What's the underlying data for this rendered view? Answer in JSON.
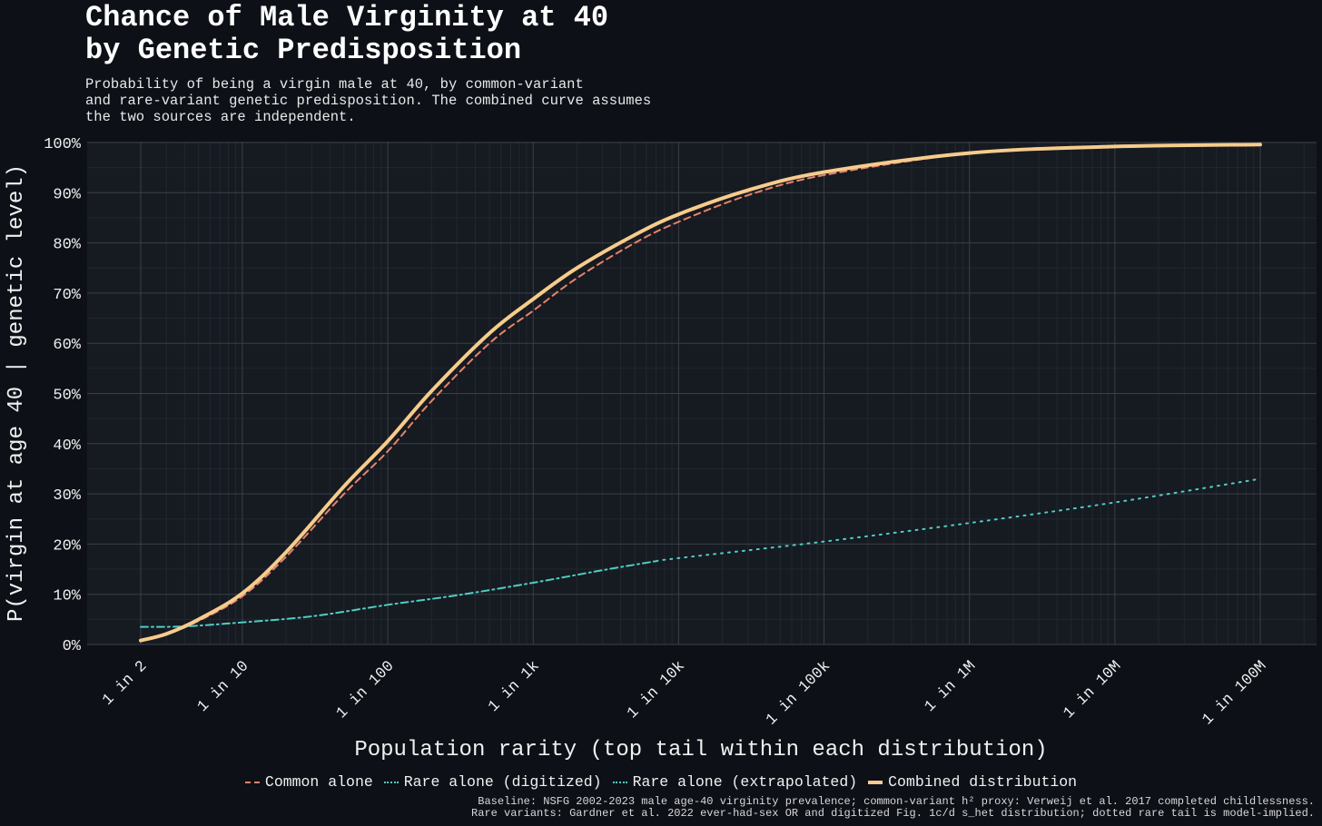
{
  "chart_data": {
    "type": "line",
    "title": "Chance of Male Virginity at 40\nby Genetic Predisposition",
    "subtitle": "Probability of being a virgin male at 40, by common-variant\nand rare-variant genetic predisposition. The combined curve assumes\nthe two sources are independent.",
    "xlabel": "Population rarity (top tail within each distribution)",
    "ylabel": "P(virgin at age 40 | genetic level)",
    "x_scale": "log",
    "xlim": [
      2,
      100000000
    ],
    "ylim": [
      0,
      100
    ],
    "x_ticks": [
      {
        "value": 2,
        "label": "1 in 2"
      },
      {
        "value": 10,
        "label": "1 in 10"
      },
      {
        "value": 100,
        "label": "1 in 100"
      },
      {
        "value": 1000,
        "label": "1 in 1k"
      },
      {
        "value": 10000,
        "label": "1 in 10k"
      },
      {
        "value": 100000,
        "label": "1 in 100k"
      },
      {
        "value": 1000000,
        "label": "1 in 1M"
      },
      {
        "value": 10000000,
        "label": "1 in 10M"
      },
      {
        "value": 100000000,
        "label": "1 in 100M"
      }
    ],
    "y_ticks": [
      {
        "value": 0,
        "label": "0%"
      },
      {
        "value": 10,
        "label": "10%"
      },
      {
        "value": 20,
        "label": "20%"
      },
      {
        "value": 30,
        "label": "30%"
      },
      {
        "value": 40,
        "label": "40%"
      },
      {
        "value": 50,
        "label": "50%"
      },
      {
        "value": 60,
        "label": "60%"
      },
      {
        "value": 70,
        "label": "70%"
      },
      {
        "value": 80,
        "label": "80%"
      },
      {
        "value": 90,
        "label": "90%"
      },
      {
        "value": 100,
        "label": "100%"
      }
    ],
    "grid": true,
    "legend_position": "bottom-center",
    "series": [
      {
        "name": "Common alone",
        "color": "#e8826a",
        "style": "dashed",
        "x": [
          2,
          3,
          5,
          10,
          20,
          50,
          100,
          200,
          500,
          1000,
          2000,
          5000,
          10000,
          30000,
          100000,
          1000000,
          10000000,
          100000000
        ],
        "y": [
          0.8,
          2.0,
          4.7,
          9.6,
          17.5,
          30.0,
          38.5,
          48.5,
          60.0,
          66.5,
          73.0,
          80.0,
          84.2,
          89.5,
          93.5,
          97.8,
          99.1,
          99.6
        ]
      },
      {
        "name": "Rare alone (digitized)",
        "color": "#4fcdc4",
        "style": "dashdot",
        "x": [
          2,
          4,
          10,
          30,
          100,
          300,
          1000,
          3000,
          7000
        ],
        "y": [
          3.5,
          3.6,
          4.4,
          5.6,
          7.9,
          9.8,
          12.3,
          14.8,
          16.6
        ]
      },
      {
        "name": "Rare alone (extrapolated)",
        "color": "#4fcdc4",
        "style": "dotted",
        "x": [
          7000,
          10000,
          100000,
          1000000,
          10000000,
          100000000
        ],
        "y": [
          16.6,
          17.2,
          20.5,
          24.2,
          28.3,
          33.0
        ]
      },
      {
        "name": "Combined distribution",
        "color": "#f6cc8c",
        "style": "solid",
        "x": [
          2,
          3,
          5,
          10,
          20,
          50,
          100,
          200,
          500,
          1000,
          2000,
          5000,
          10000,
          30000,
          100000,
          1000000,
          10000000,
          100000000
        ],
        "y": [
          0.8,
          2.1,
          5.0,
          10.2,
          18.4,
          31.5,
          40.5,
          50.5,
          62.0,
          68.8,
          75.0,
          81.6,
          85.7,
          90.5,
          94.1,
          97.9,
          99.2,
          99.6
        ]
      }
    ],
    "footer": "Baseline: NSFG 2002-2023 male age-40 virginity prevalence; common-variant h² proxy: Verweij et al. 2017 completed childlessness.\nRare variants: Gardner et al. 2022 ever-had-sex OR and digitized Fig. 1c/d s_het distribution; dotted rare tail is model-implied.",
    "colors": {
      "background": "#0d1017",
      "plot_background": "#161a21",
      "grid": "#3a3f48"
    }
  }
}
